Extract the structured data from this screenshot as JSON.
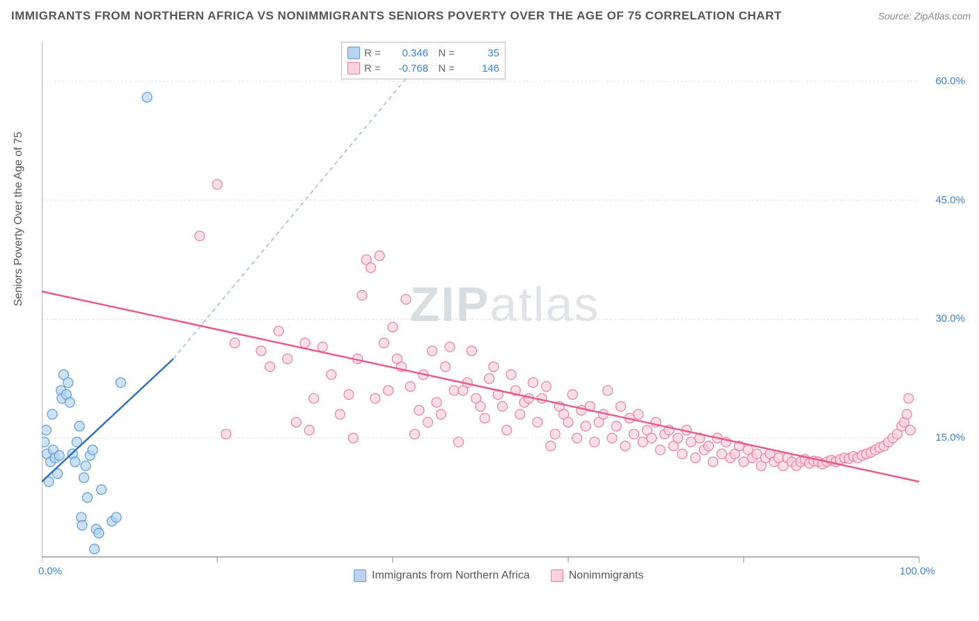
{
  "header": {
    "title": "IMMIGRANTS FROM NORTHERN AFRICA VS NONIMMIGRANTS SENIORS POVERTY OVER THE AGE OF 75 CORRELATION CHART",
    "source": "Source: ZipAtlas.com"
  },
  "chart": {
    "type": "scatter",
    "ylabel": "Seniors Poverty Over the Age of 75",
    "watermark_a": "ZIP",
    "watermark_b": "atlas",
    "background_color": "#ffffff",
    "grid_color": "#dddddd",
    "axis_line_color": "#888888",
    "label_color": "#555555",
    "value_color": "#3b82d6",
    "xlim": [
      0,
      100
    ],
    "ylim": [
      0,
      65
    ],
    "xticks": [
      0,
      20,
      40,
      60,
      80,
      100
    ],
    "xtick_labels": [
      "0.0%",
      "",
      "",
      "",
      "",
      "100.0%"
    ],
    "yticks": [
      15,
      30,
      45,
      60
    ],
    "ytick_labels": [
      "15.0%",
      "30.0%",
      "45.0%",
      "60.0%"
    ],
    "marker_radius": 7,
    "marker_stroke_width": 1.2,
    "series": [
      {
        "name": "Immigrants from Northern Africa",
        "fill": "#b8d4f0",
        "stroke": "#5a9bd5",
        "trend_color": "#2f6fb5",
        "trend_dash_color": "#9fb8d0",
        "R": "0.346",
        "N": "35",
        "trend_solid": {
          "x1": 0,
          "y1": 9.5,
          "x2": 15,
          "y2": 25
        },
        "trend_dash": {
          "x1": 15,
          "y1": 25,
          "x2": 45,
          "y2": 65
        },
        "points": [
          [
            0.3,
            14.5
          ],
          [
            0.5,
            16
          ],
          [
            0.6,
            13
          ],
          [
            0.8,
            9.5
          ],
          [
            1,
            12
          ],
          [
            1.2,
            18
          ],
          [
            1.3,
            13.5
          ],
          [
            1.5,
            12.5
          ],
          [
            1.8,
            10.5
          ],
          [
            2,
            12.8
          ],
          [
            2.2,
            21
          ],
          [
            2.3,
            20
          ],
          [
            2.5,
            23
          ],
          [
            2.8,
            20.5
          ],
          [
            3,
            22
          ],
          [
            3.2,
            19.5
          ],
          [
            3.5,
            13
          ],
          [
            3.8,
            12
          ],
          [
            4,
            14.5
          ],
          [
            4.3,
            16.5
          ],
          [
            4.5,
            5
          ],
          [
            4.6,
            4
          ],
          [
            4.8,
            10
          ],
          [
            5,
            11.5
          ],
          [
            5.2,
            7.5
          ],
          [
            5.5,
            12.8
          ],
          [
            5.8,
            13.5
          ],
          [
            6,
            1
          ],
          [
            6.2,
            3.5
          ],
          [
            6.5,
            3
          ],
          [
            6.8,
            8.5
          ],
          [
            8,
            4.5
          ],
          [
            8.5,
            5
          ],
          [
            9,
            22
          ],
          [
            12,
            58
          ]
        ]
      },
      {
        "name": "Nonimmigrants",
        "fill": "#fcd2dc",
        "stroke": "#e97f9f",
        "trend_color": "#e85a8a",
        "R": "-0.768",
        "N": "146",
        "trend_solid": {
          "x1": 0,
          "y1": 33.5,
          "x2": 100,
          "y2": 9.5
        },
        "points": [
          [
            18,
            40.5
          ],
          [
            20,
            47
          ],
          [
            21,
            15.5
          ],
          [
            22,
            27
          ],
          [
            25,
            26
          ],
          [
            26,
            24
          ],
          [
            27,
            28.5
          ],
          [
            28,
            25
          ],
          [
            29,
            17
          ],
          [
            30,
            27
          ],
          [
            30.5,
            16
          ],
          [
            31,
            20
          ],
          [
            32,
            26.5
          ],
          [
            33,
            23
          ],
          [
            34,
            18
          ],
          [
            35,
            20.5
          ],
          [
            35.5,
            15
          ],
          [
            36,
            25
          ],
          [
            36.5,
            33
          ],
          [
            37,
            37.5
          ],
          [
            37.5,
            36.5
          ],
          [
            38,
            20
          ],
          [
            38.5,
            38
          ],
          [
            39,
            27
          ],
          [
            39.5,
            21
          ],
          [
            40,
            29
          ],
          [
            40.5,
            25
          ],
          [
            41,
            24
          ],
          [
            41.5,
            32.5
          ],
          [
            42,
            21.5
          ],
          [
            42.5,
            15.5
          ],
          [
            43,
            18.5
          ],
          [
            43.5,
            23
          ],
          [
            44,
            17
          ],
          [
            44.5,
            26
          ],
          [
            45,
            19.5
          ],
          [
            45.5,
            18
          ],
          [
            46,
            24
          ],
          [
            46.5,
            26.5
          ],
          [
            47,
            21
          ],
          [
            47.5,
            14.5
          ],
          [
            48,
            21
          ],
          [
            48.5,
            22
          ],
          [
            49,
            26
          ],
          [
            49.5,
            20
          ],
          [
            50,
            19
          ],
          [
            50.5,
            17.5
          ],
          [
            51,
            22.5
          ],
          [
            51.5,
            24
          ],
          [
            52,
            20.5
          ],
          [
            52.5,
            19
          ],
          [
            53,
            16
          ],
          [
            53.5,
            23
          ],
          [
            54,
            21
          ],
          [
            54.5,
            18
          ],
          [
            55,
            19.5
          ],
          [
            55.5,
            20
          ],
          [
            56,
            22
          ],
          [
            56.5,
            17
          ],
          [
            57,
            20
          ],
          [
            57.5,
            21.5
          ],
          [
            58,
            14
          ],
          [
            58.5,
            15.5
          ],
          [
            59,
            19
          ],
          [
            59.5,
            18
          ],
          [
            60,
            17
          ],
          [
            60.5,
            20.5
          ],
          [
            61,
            15
          ],
          [
            61.5,
            18.5
          ],
          [
            62,
            16.5
          ],
          [
            62.5,
            19
          ],
          [
            63,
            14.5
          ],
          [
            63.5,
            17
          ],
          [
            64,
            18
          ],
          [
            64.5,
            21
          ],
          [
            65,
            15
          ],
          [
            65.5,
            16.5
          ],
          [
            66,
            19
          ],
          [
            66.5,
            14
          ],
          [
            67,
            17.5
          ],
          [
            67.5,
            15.5
          ],
          [
            68,
            18
          ],
          [
            68.5,
            14.5
          ],
          [
            69,
            16
          ],
          [
            69.5,
            15
          ],
          [
            70,
            17
          ],
          [
            70.5,
            13.5
          ],
          [
            71,
            15.5
          ],
          [
            71.5,
            16
          ],
          [
            72,
            14
          ],
          [
            72.5,
            15
          ],
          [
            73,
            13
          ],
          [
            73.5,
            16
          ],
          [
            74,
            14.5
          ],
          [
            74.5,
            12.5
          ],
          [
            75,
            15
          ],
          [
            75.5,
            13.5
          ],
          [
            76,
            14
          ],
          [
            76.5,
            12
          ],
          [
            77,
            15
          ],
          [
            77.5,
            13
          ],
          [
            78,
            14.5
          ],
          [
            78.5,
            12.5
          ],
          [
            79,
            13
          ],
          [
            79.5,
            14
          ],
          [
            80,
            12
          ],
          [
            80.5,
            13.5
          ],
          [
            81,
            12.5
          ],
          [
            81.5,
            13
          ],
          [
            82,
            11.5
          ],
          [
            82.5,
            12.5
          ],
          [
            83,
            13
          ],
          [
            83.5,
            12
          ],
          [
            84,
            12.5
          ],
          [
            84.5,
            11.5
          ],
          [
            85,
            12.5
          ],
          [
            85.5,
            12
          ],
          [
            86,
            11.5
          ],
          [
            86.5,
            12
          ],
          [
            87,
            12.3
          ],
          [
            87.5,
            11.8
          ],
          [
            88,
            12.1
          ],
          [
            88.5,
            12
          ],
          [
            89,
            11.7
          ],
          [
            89.5,
            12
          ],
          [
            90,
            12.2
          ],
          [
            90.5,
            12
          ],
          [
            91,
            12.3
          ],
          [
            91.5,
            12.5
          ],
          [
            92,
            12.4
          ],
          [
            92.5,
            12.7
          ],
          [
            93,
            12.5
          ],
          [
            93.5,
            12.8
          ],
          [
            94,
            13
          ],
          [
            94.5,
            13.2
          ],
          [
            95,
            13.5
          ],
          [
            95.5,
            13.8
          ],
          [
            96,
            14
          ],
          [
            96.5,
            14.5
          ],
          [
            97,
            15
          ],
          [
            97.5,
            15.5
          ],
          [
            98,
            16.5
          ],
          [
            98.3,
            17
          ],
          [
            98.6,
            18
          ],
          [
            98.8,
            20
          ],
          [
            99,
            16
          ]
        ]
      }
    ]
  }
}
